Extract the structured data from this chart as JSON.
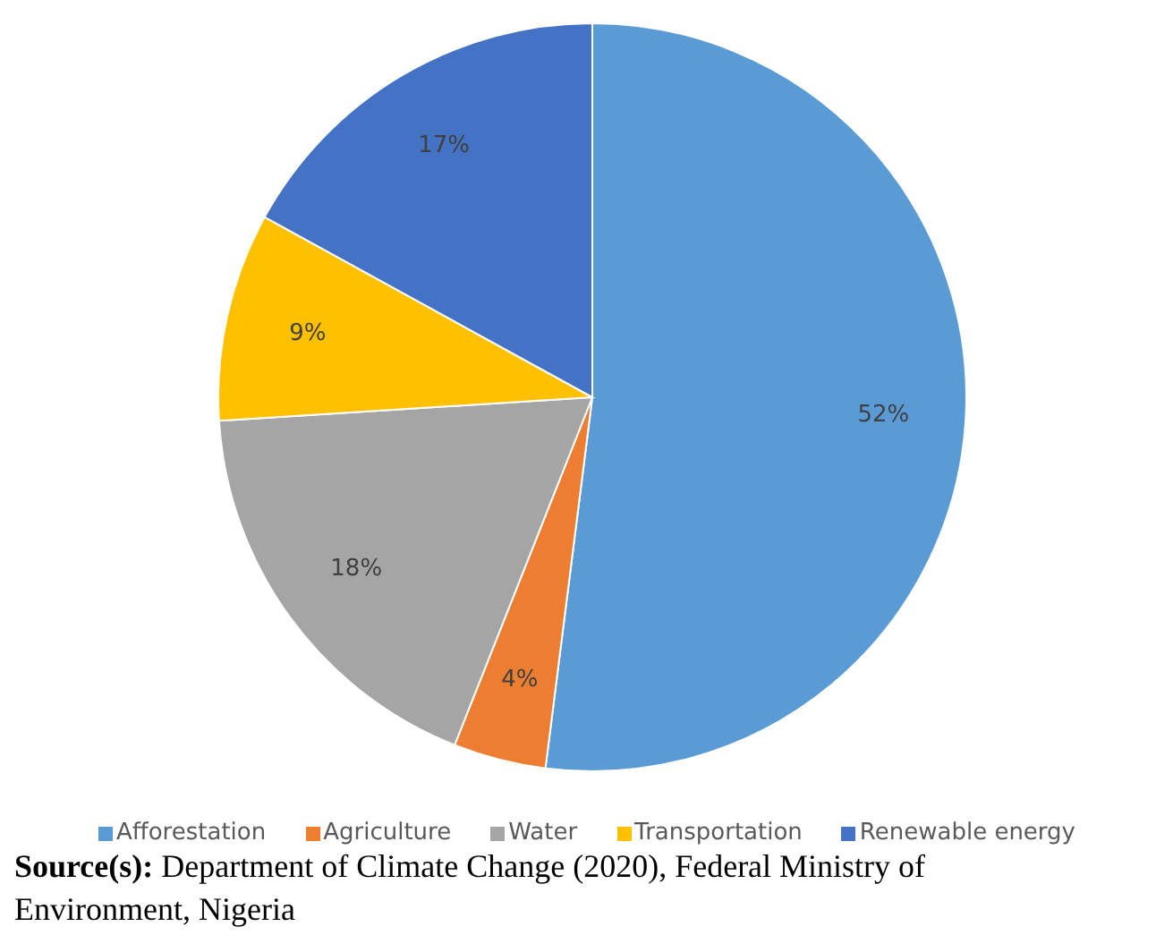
{
  "chart_data": {
    "type": "pie",
    "categories": [
      "Afforestation",
      "Agriculture",
      "Water",
      "Transportation",
      "Renewable energy"
    ],
    "values": [
      52,
      4,
      18,
      9,
      17
    ],
    "colors": [
      "#5b9bd5",
      "#ed7d31",
      "#a5a5a5",
      "#ffc000",
      "#4472c4"
    ],
    "value_labels": [
      "52%",
      "4%",
      "18%",
      "9%",
      "17%"
    ],
    "legend": "bottom",
    "annotations": [
      "Source(s): Department of Climate Change (2020), Federal Ministry of Environment, Nigeria"
    ]
  }
}
